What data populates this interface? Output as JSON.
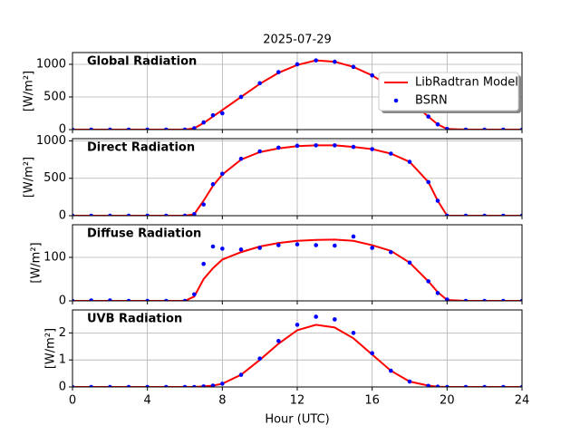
{
  "title": "2025-07-29",
  "chart_data": [
    {
      "type": "line",
      "annotation": "Global Radiation",
      "annotation_color": "#ffa500",
      "ylabel": "[W/m²]",
      "xlim": [
        0,
        24
      ],
      "xticks": [
        0,
        4,
        8,
        12,
        16,
        20,
        24
      ],
      "ylim": [
        0,
        1180
      ],
      "yticks": [
        0,
        500,
        1000
      ],
      "grid": true,
      "legend": "upper right",
      "x": [
        0,
        1,
        2,
        3,
        4,
        5,
        6,
        6.5,
        7,
        7.5,
        8,
        9,
        10,
        11,
        12,
        13,
        14,
        15,
        16,
        17,
        18,
        19,
        19.5,
        20,
        21,
        22,
        23,
        24
      ],
      "series": [
        {
          "name": "LibRadtran Model",
          "color": "#ff0000",
          "style": "line",
          "values": [
            0,
            0,
            0,
            0,
            0,
            0,
            0,
            20,
            100,
            200,
            300,
            500,
            700,
            870,
            990,
            1060,
            1040,
            960,
            830,
            650,
            440,
            200,
            80,
            10,
            0,
            0,
            0,
            0
          ]
        },
        {
          "name": "BSRN",
          "color": "#0000ff",
          "style": "points",
          "values": [
            0,
            0,
            0,
            0,
            0,
            0,
            0,
            20,
            110,
            220,
            250,
            500,
            710,
            880,
            1000,
            1060,
            1040,
            960,
            830,
            640,
            430,
            200,
            80,
            10,
            0,
            0,
            0,
            0
          ]
        }
      ]
    },
    {
      "type": "line",
      "annotation": "Direct Radiation",
      "annotation_color": "#ffa500",
      "ylabel": "[W/m²]",
      "xlim": [
        0,
        24
      ],
      "xticks": [
        0,
        4,
        8,
        12,
        16,
        20,
        24
      ],
      "ylim": [
        0,
        1030
      ],
      "yticks": [
        0,
        500,
        1000
      ],
      "grid": true,
      "x": [
        0,
        1,
        2,
        3,
        4,
        5,
        6,
        6.5,
        7,
        7.5,
        8,
        9,
        10,
        11,
        12,
        13,
        14,
        15,
        16,
        17,
        18,
        19,
        19.5,
        20,
        21,
        22,
        23,
        24
      ],
      "series": [
        {
          "color": "#ff0000",
          "style": "line",
          "values": [
            0,
            0,
            0,
            0,
            0,
            0,
            0,
            20,
            200,
            400,
            550,
            750,
            850,
            900,
            930,
            940,
            940,
            920,
            890,
            830,
            720,
            450,
            200,
            0,
            0,
            0,
            0,
            0
          ]
        },
        {
          "color": "#0000ff",
          "style": "points",
          "values": [
            0,
            0,
            0,
            0,
            0,
            0,
            0,
            20,
            150,
            420,
            560,
            760,
            860,
            910,
            935,
            940,
            940,
            920,
            890,
            830,
            720,
            450,
            200,
            0,
            0,
            0,
            0,
            0
          ]
        }
      ]
    },
    {
      "type": "line",
      "annotation": "Diffuse Radiation",
      "annotation_color": "#ffa500",
      "ylabel": "[W/m²]",
      "xlim": [
        0,
        24
      ],
      "xticks": [
        0,
        4,
        8,
        12,
        16,
        20,
        24
      ],
      "ylim": [
        0,
        175
      ],
      "yticks": [
        0,
        100
      ],
      "grid": true,
      "x": [
        0,
        1,
        2,
        3,
        4,
        5,
        6,
        6.5,
        7,
        7.5,
        8,
        9,
        10,
        11,
        12,
        13,
        14,
        15,
        16,
        17,
        18,
        19,
        19.5,
        20,
        21,
        22,
        23,
        24
      ],
      "series": [
        {
          "color": "#ff0000",
          "style": "line",
          "values": [
            0,
            0,
            0,
            0,
            0,
            0,
            0,
            10,
            50,
            75,
            95,
            112,
            125,
            133,
            138,
            140,
            141,
            138,
            128,
            115,
            88,
            45,
            20,
            2,
            0,
            0,
            0,
            0
          ]
        },
        {
          "color": "#0000ff",
          "style": "points",
          "values": [
            0,
            1,
            1,
            0,
            0,
            0,
            0,
            15,
            85,
            125,
            120,
            118,
            122,
            128,
            130,
            128,
            127,
            148,
            122,
            112,
            88,
            45,
            18,
            3,
            0,
            0,
            0,
            0
          ]
        }
      ]
    },
    {
      "type": "line",
      "annotation": "UVB Radiation",
      "annotation_color": "#ffa500",
      "ylabel": "[W/m²]",
      "xlabel": "Hour (UTC)",
      "xlim": [
        0,
        24
      ],
      "xticks": [
        0,
        4,
        8,
        12,
        16,
        20,
        24
      ],
      "ylim": [
        0,
        2.85
      ],
      "yticks": [
        0,
        1,
        2
      ],
      "grid": true,
      "x": [
        0,
        1,
        2,
        3,
        4,
        5,
        6,
        6.5,
        7,
        7.5,
        8,
        9,
        10,
        11,
        12,
        13,
        14,
        15,
        16,
        17,
        18,
        19,
        19.5,
        20,
        21,
        22,
        23,
        24
      ],
      "series": [
        {
          "color": "#ff0000",
          "style": "line",
          "values": [
            0,
            0,
            0,
            0,
            0,
            0,
            0,
            0,
            0.02,
            0.05,
            0.12,
            0.45,
            1.0,
            1.6,
            2.1,
            2.3,
            2.2,
            1.8,
            1.2,
            0.6,
            0.2,
            0.05,
            0.01,
            0,
            0,
            0,
            0,
            0
          ]
        },
        {
          "color": "#0000ff",
          "style": "points",
          "values": [
            0,
            0,
            0,
            0,
            0,
            0,
            0,
            0,
            0.02,
            0.05,
            0.12,
            0.45,
            1.05,
            1.7,
            2.3,
            2.6,
            2.5,
            2.0,
            1.25,
            0.6,
            0.2,
            0.04,
            0.01,
            0,
            0,
            0,
            0,
            0
          ]
        }
      ]
    }
  ]
}
